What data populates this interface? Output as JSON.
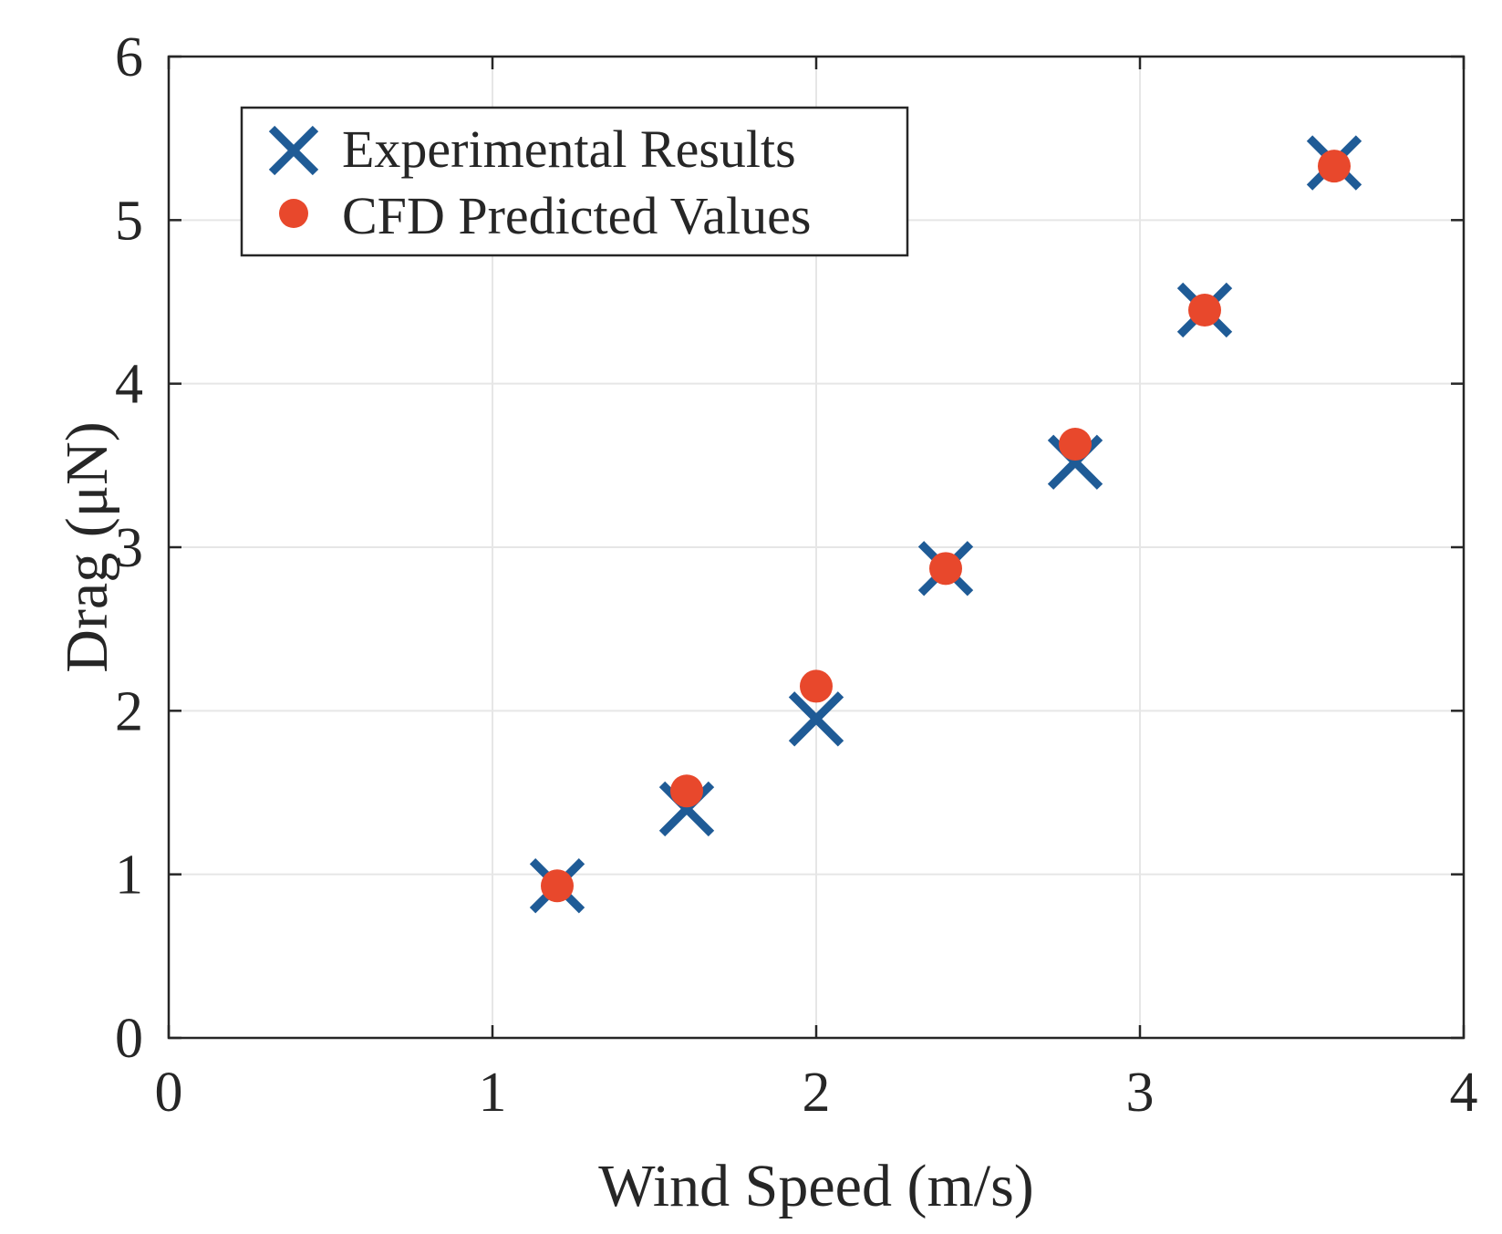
{
  "chart_data": {
    "type": "scatter",
    "title": "",
    "xlabel": "Wind Speed (m/s)",
    "ylabel": "Drag (μN)",
    "xlim": [
      0,
      4
    ],
    "ylim": [
      0,
      6
    ],
    "xticks": [
      0,
      1,
      2,
      3,
      4
    ],
    "yticks": [
      0,
      1,
      2,
      3,
      4,
      5,
      6
    ],
    "xtick_labels": [
      "0",
      "1",
      "2",
      "3",
      "4"
    ],
    "ytick_labels": [
      "0",
      "1",
      "2",
      "3",
      "4",
      "5",
      "6"
    ],
    "grid": true,
    "legend_position": "top-left",
    "series": [
      {
        "name": "Experimental Results",
        "marker": "x",
        "color": "#1f5b96",
        "x": [
          1.2,
          1.6,
          2.0,
          2.4,
          2.8,
          3.2,
          3.6
        ],
        "y": [
          0.93,
          1.4,
          1.95,
          2.87,
          3.52,
          4.45,
          5.35
        ]
      },
      {
        "name": "CFD Predicted Values",
        "marker": "o",
        "color": "#e8482c",
        "x": [
          1.2,
          1.6,
          2.0,
          2.4,
          2.8,
          3.2,
          3.6
        ],
        "y": [
          0.93,
          1.51,
          2.15,
          2.87,
          3.63,
          4.45,
          5.33
        ]
      }
    ]
  }
}
